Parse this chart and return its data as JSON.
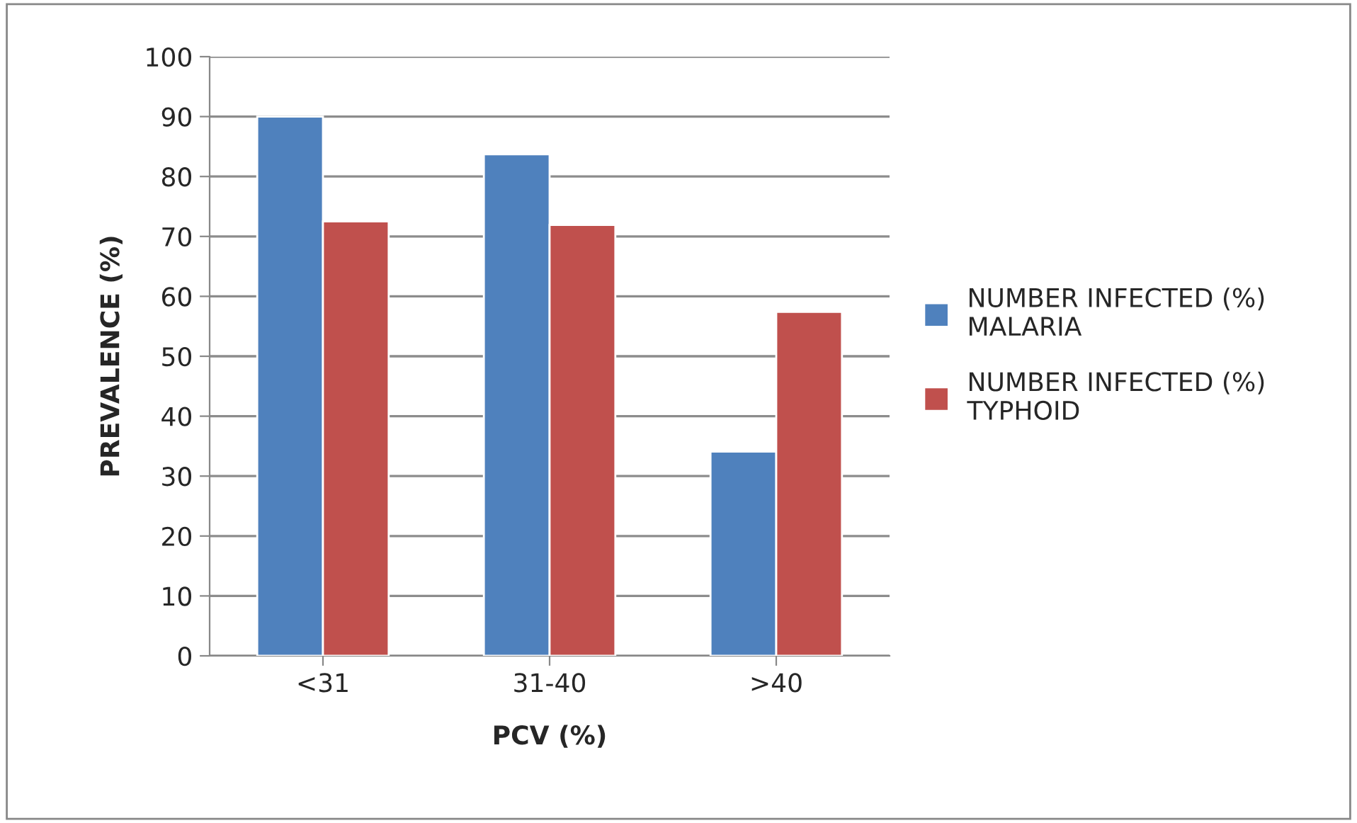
{
  "chart_data": {
    "type": "bar",
    "xlabel": "PCV (%)",
    "ylabel": "PREVALENCE (%)",
    "categories": [
      "<31",
      "31-40",
      ">40"
    ],
    "series": [
      {
        "name": "NUMBER INFECTED (%)\nMALARIA",
        "color": "#4f81bd",
        "values": [
          90,
          83.7,
          34.1
        ]
      },
      {
        "name": "NUMBER INFECTED (%)\nTYPHOID",
        "color": "#c0504d",
        "values": [
          72.5,
          71.9,
          57.4
        ]
      }
    ],
    "ylim": [
      0,
      100
    ],
    "yticks": [
      0,
      10,
      20,
      30,
      40,
      50,
      60,
      70,
      80,
      90,
      100
    ],
    "grid": "y",
    "legend": "right"
  }
}
